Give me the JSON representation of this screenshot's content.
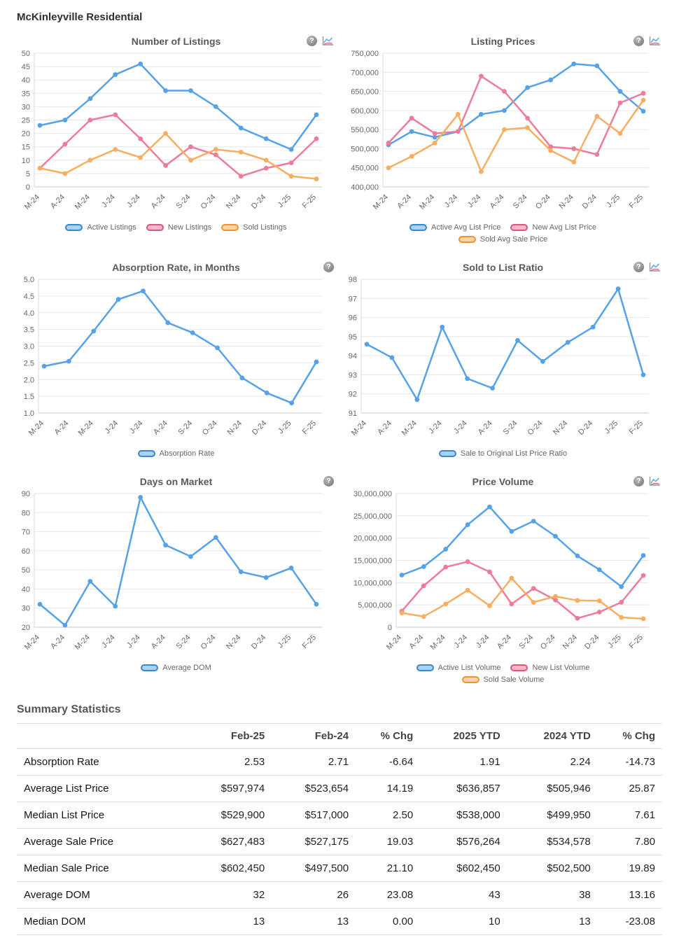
{
  "page": {
    "title": "McKinleyville Residential"
  },
  "colors": {
    "blue": {
      "line": "#56A2E8",
      "fill": "#A9D2F3",
      "border": "#3A87CE"
    },
    "pink": {
      "line": "#EE7C99",
      "fill": "#F6B7C6",
      "border": "#DE5580"
    },
    "orange": {
      "line": "#F8AE61",
      "fill": "#FBD3A5",
      "border": "#EF9330"
    }
  },
  "chart_data": [
    {
      "type": "line",
      "title": "Number of Listings",
      "icons": [
        "help-icon",
        "compare-icon"
      ],
      "categories": [
        "M-24",
        "A-24",
        "M-24",
        "J-24",
        "J-24",
        "A-24",
        "S-24",
        "O-24",
        "N-24",
        "D-24",
        "J-25",
        "F-25"
      ],
      "ylim": [
        0,
        50
      ],
      "yticks": [
        {
          "v": 0,
          "label": "0"
        },
        {
          "v": 5,
          "label": "5"
        },
        {
          "v": 10,
          "label": "10"
        },
        {
          "v": 15,
          "label": "15"
        },
        {
          "v": 20,
          "label": "20"
        },
        {
          "v": 25,
          "label": "25"
        },
        {
          "v": 30,
          "label": "30"
        },
        {
          "v": 35,
          "label": "35"
        },
        {
          "v": 40,
          "label": "40"
        },
        {
          "v": 45,
          "label": "45"
        },
        {
          "v": 50,
          "label": "50"
        }
      ],
      "series": [
        {
          "name": "Active Listings",
          "color": "blue",
          "values": [
            23,
            25,
            33,
            42,
            46,
            36,
            36,
            30,
            22,
            18,
            14,
            27
          ]
        },
        {
          "name": "New Listings",
          "color": "pink",
          "values": [
            7,
            16,
            25,
            27,
            18,
            8,
            15,
            12,
            4,
            7,
            9,
            18
          ]
        },
        {
          "name": "Sold Listings",
          "color": "orange",
          "values": [
            7,
            5,
            10,
            14,
            11,
            20,
            10,
            14,
            13,
            10,
            4,
            3
          ]
        }
      ]
    },
    {
      "type": "line",
      "title": "Listing Prices",
      "icons": [
        "help-icon",
        "compare-icon"
      ],
      "categories": [
        "M-24",
        "A-24",
        "M-24",
        "J-24",
        "J-24",
        "A-24",
        "S-24",
        "O-24",
        "N-24",
        "D-24",
        "J-25",
        "F-25"
      ],
      "ylim": [
        400000,
        750000
      ],
      "yticks": [
        {
          "v": 400000,
          "label": "400,000"
        },
        {
          "v": 450000,
          "label": "450,000"
        },
        {
          "v": 500000,
          "label": "500,000"
        },
        {
          "v": 550000,
          "label": "550,000"
        },
        {
          "v": 600000,
          "label": "600,000"
        },
        {
          "v": 650000,
          "label": "650,000"
        },
        {
          "v": 700000,
          "label": "700,000"
        },
        {
          "v": 750000,
          "label": "750,000"
        }
      ],
      "series": [
        {
          "name": "Active Avg List Price",
          "color": "blue",
          "values": [
            510000,
            545000,
            530000,
            545000,
            590000,
            600000,
            660000,
            680000,
            722000,
            717000,
            650000,
            598000
          ]
        },
        {
          "name": "New Avg List Price",
          "color": "pink",
          "values": [
            515000,
            580000,
            540000,
            545000,
            690000,
            650000,
            580000,
            505000,
            500000,
            485000,
            620000,
            645000
          ]
        },
        {
          "name": "Sold Avg Sale Price",
          "color": "orange",
          "values": [
            450000,
            480000,
            515000,
            590000,
            440000,
            550000,
            555000,
            495000,
            465000,
            585000,
            540000,
            627000
          ]
        }
      ]
    },
    {
      "type": "line",
      "title": "Absorption Rate, in Months",
      "icons": [
        "help-icon"
      ],
      "categories": [
        "M-24",
        "A-24",
        "M-24",
        "J-24",
        "J-24",
        "A-24",
        "S-24",
        "O-24",
        "N-24",
        "D-24",
        "J-25",
        "F-25"
      ],
      "ylim": [
        1.0,
        5.0
      ],
      "yticks": [
        {
          "v": 1.0,
          "label": "1.0"
        },
        {
          "v": 1.5,
          "label": "1.5"
        },
        {
          "v": 2.0,
          "label": "2.0"
        },
        {
          "v": 2.5,
          "label": "2.5"
        },
        {
          "v": 3.0,
          "label": "3.0"
        },
        {
          "v": 3.5,
          "label": "3.5"
        },
        {
          "v": 4.0,
          "label": "4.0"
        },
        {
          "v": 4.5,
          "label": "4.5"
        },
        {
          "v": 5.0,
          "label": "5.0"
        }
      ],
      "series": [
        {
          "name": "Absorption Rate",
          "color": "blue",
          "values": [
            2.4,
            2.55,
            3.45,
            4.4,
            4.65,
            3.7,
            3.4,
            2.95,
            2.05,
            1.6,
            1.3,
            2.53
          ]
        }
      ]
    },
    {
      "type": "line",
      "title": "Sold to List Ratio",
      "icons": [
        "help-icon",
        "compare-icon"
      ],
      "categories": [
        "M-24",
        "A-24",
        "M-24",
        "J-24",
        "J-24",
        "A-24",
        "S-24",
        "O-24",
        "N-24",
        "D-24",
        "J-25",
        "F-25"
      ],
      "ylim": [
        91,
        98
      ],
      "yticks": [
        {
          "v": 91,
          "label": "91"
        },
        {
          "v": 92,
          "label": "92"
        },
        {
          "v": 93,
          "label": "93"
        },
        {
          "v": 94,
          "label": "94"
        },
        {
          "v": 95,
          "label": "95"
        },
        {
          "v": 96,
          "label": "96"
        },
        {
          "v": 97,
          "label": "97"
        },
        {
          "v": 98,
          "label": "98"
        }
      ],
      "series": [
        {
          "name": "Sale to Original List Price Ratio",
          "color": "blue",
          "values": [
            94.6,
            93.9,
            91.7,
            95.5,
            92.8,
            92.3,
            94.8,
            93.7,
            94.7,
            95.5,
            97.5,
            93.0
          ]
        }
      ]
    },
    {
      "type": "line",
      "title": "Days on Market",
      "icons": [
        "help-icon"
      ],
      "categories": [
        "M-24",
        "A-24",
        "M-24",
        "J-24",
        "J-24",
        "A-24",
        "S-24",
        "O-24",
        "N-24",
        "D-24",
        "J-25",
        "F-25"
      ],
      "ylim": [
        20,
        90
      ],
      "yticks": [
        {
          "v": 20,
          "label": "20"
        },
        {
          "v": 30,
          "label": "30"
        },
        {
          "v": 40,
          "label": "40"
        },
        {
          "v": 50,
          "label": "50"
        },
        {
          "v": 60,
          "label": "60"
        },
        {
          "v": 70,
          "label": "70"
        },
        {
          "v": 80,
          "label": "80"
        },
        {
          "v": 90,
          "label": "90"
        }
      ],
      "series": [
        {
          "name": "Average DOM",
          "color": "blue",
          "values": [
            32,
            21,
            44,
            31,
            88,
            63,
            57,
            67,
            49,
            46,
            51,
            32
          ]
        }
      ]
    },
    {
      "type": "line",
      "title": "Price Volume",
      "icons": [
        "help-icon",
        "compare-icon"
      ],
      "categories": [
        "M-24",
        "A-24",
        "M-24",
        "J-24",
        "J-24",
        "A-24",
        "S-24",
        "O-24",
        "N-24",
        "D-24",
        "J-25",
        "F-25"
      ],
      "ylim": [
        0,
        30000000
      ],
      "yticks": [
        {
          "v": 0,
          "label": "0"
        },
        {
          "v": 5000000,
          "label": "5,000,000"
        },
        {
          "v": 10000000,
          "label": "10,000,000"
        },
        {
          "v": 15000000,
          "label": "15,000,000"
        },
        {
          "v": 20000000,
          "label": "20,000,000"
        },
        {
          "v": 25000000,
          "label": "25,000,000"
        },
        {
          "v": 30000000,
          "label": "30,000,000"
        }
      ],
      "series": [
        {
          "name": "Active List Volume",
          "color": "blue",
          "values": [
            11700000,
            13600000,
            17500000,
            23000000,
            27000000,
            21500000,
            23800000,
            20400000,
            16000000,
            12900000,
            9100000,
            16100000
          ]
        },
        {
          "name": "New List Volume",
          "color": "pink",
          "values": [
            3600000,
            9300000,
            13500000,
            14700000,
            12400000,
            5200000,
            8700000,
            6100000,
            2000000,
            3400000,
            5600000,
            11600000
          ]
        },
        {
          "name": "Sold Sale Volume",
          "color": "orange",
          "values": [
            3200000,
            2400000,
            5200000,
            8300000,
            4800000,
            11000000,
            5600000,
            6900000,
            6000000,
            5900000,
            2200000,
            1900000
          ]
        }
      ]
    }
  ],
  "summary": {
    "title": "Summary Statistics",
    "columns": [
      "",
      "Feb-25",
      "Feb-24",
      "% Chg",
      "2025 YTD",
      "2024 YTD",
      "% Chg"
    ],
    "rows": [
      [
        "Absorption Rate",
        "2.53",
        "2.71",
        "-6.64",
        "1.91",
        "2.24",
        "-14.73"
      ],
      [
        "Average List Price",
        "$597,974",
        "$523,654",
        "14.19",
        "$636,857",
        "$505,946",
        "25.87"
      ],
      [
        "Median List Price",
        "$529,900",
        "$517,000",
        "2.50",
        "$538,000",
        "$499,950",
        "7.61"
      ],
      [
        "Average Sale Price",
        "$627,483",
        "$527,175",
        "19.03",
        "$576,264",
        "$534,578",
        "7.80"
      ],
      [
        "Median Sale Price",
        "$602,450",
        "$497,500",
        "21.10",
        "$602,450",
        "$502,500",
        "19.89"
      ],
      [
        "Average DOM",
        "32",
        "26",
        "23.08",
        "43",
        "38",
        "13.16"
      ],
      [
        "Median DOM",
        "13",
        "13",
        "0.00",
        "10",
        "13",
        "-23.08"
      ]
    ]
  }
}
